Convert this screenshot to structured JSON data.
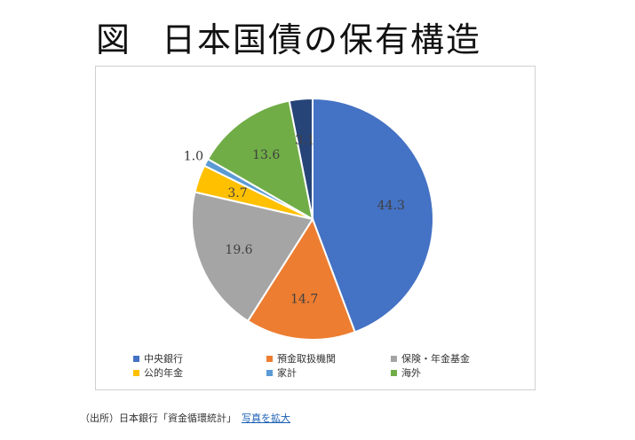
{
  "page": {
    "title_prefix": "図",
    "title_main": "日本国債の保有構造",
    "source_text": "（出所）日本銀行「資金循環統計」",
    "enlarge_link": "写真を拡大"
  },
  "chart_data": {
    "type": "pie",
    "title": "",
    "start_angle_deg": 0,
    "direction": "clockwise",
    "legend_position": "bottom",
    "slices": [
      {
        "label": "中央銀行",
        "value": 44.3,
        "color": "#4472C4",
        "value_label": "44.3"
      },
      {
        "label": "預金取扱機関",
        "value": 14.7,
        "color": "#ED7D31",
        "value_label": "14.7"
      },
      {
        "label": "保険・年金基金",
        "value": 19.6,
        "color": "#A5A5A5",
        "value_label": "19.6"
      },
      {
        "label": "公的年金",
        "value": 3.7,
        "color": "#FFC000",
        "value_label": "3.7"
      },
      {
        "label": "家計",
        "value": 1.0,
        "color": "#5B9BD5",
        "value_label": "1.0"
      },
      {
        "label": "海外",
        "value": 13.6,
        "color": "#70AD47",
        "value_label": "13.6"
      },
      {
        "label": "",
        "value": 3.1,
        "color": "#264478",
        "value_label": "3.1"
      }
    ]
  }
}
